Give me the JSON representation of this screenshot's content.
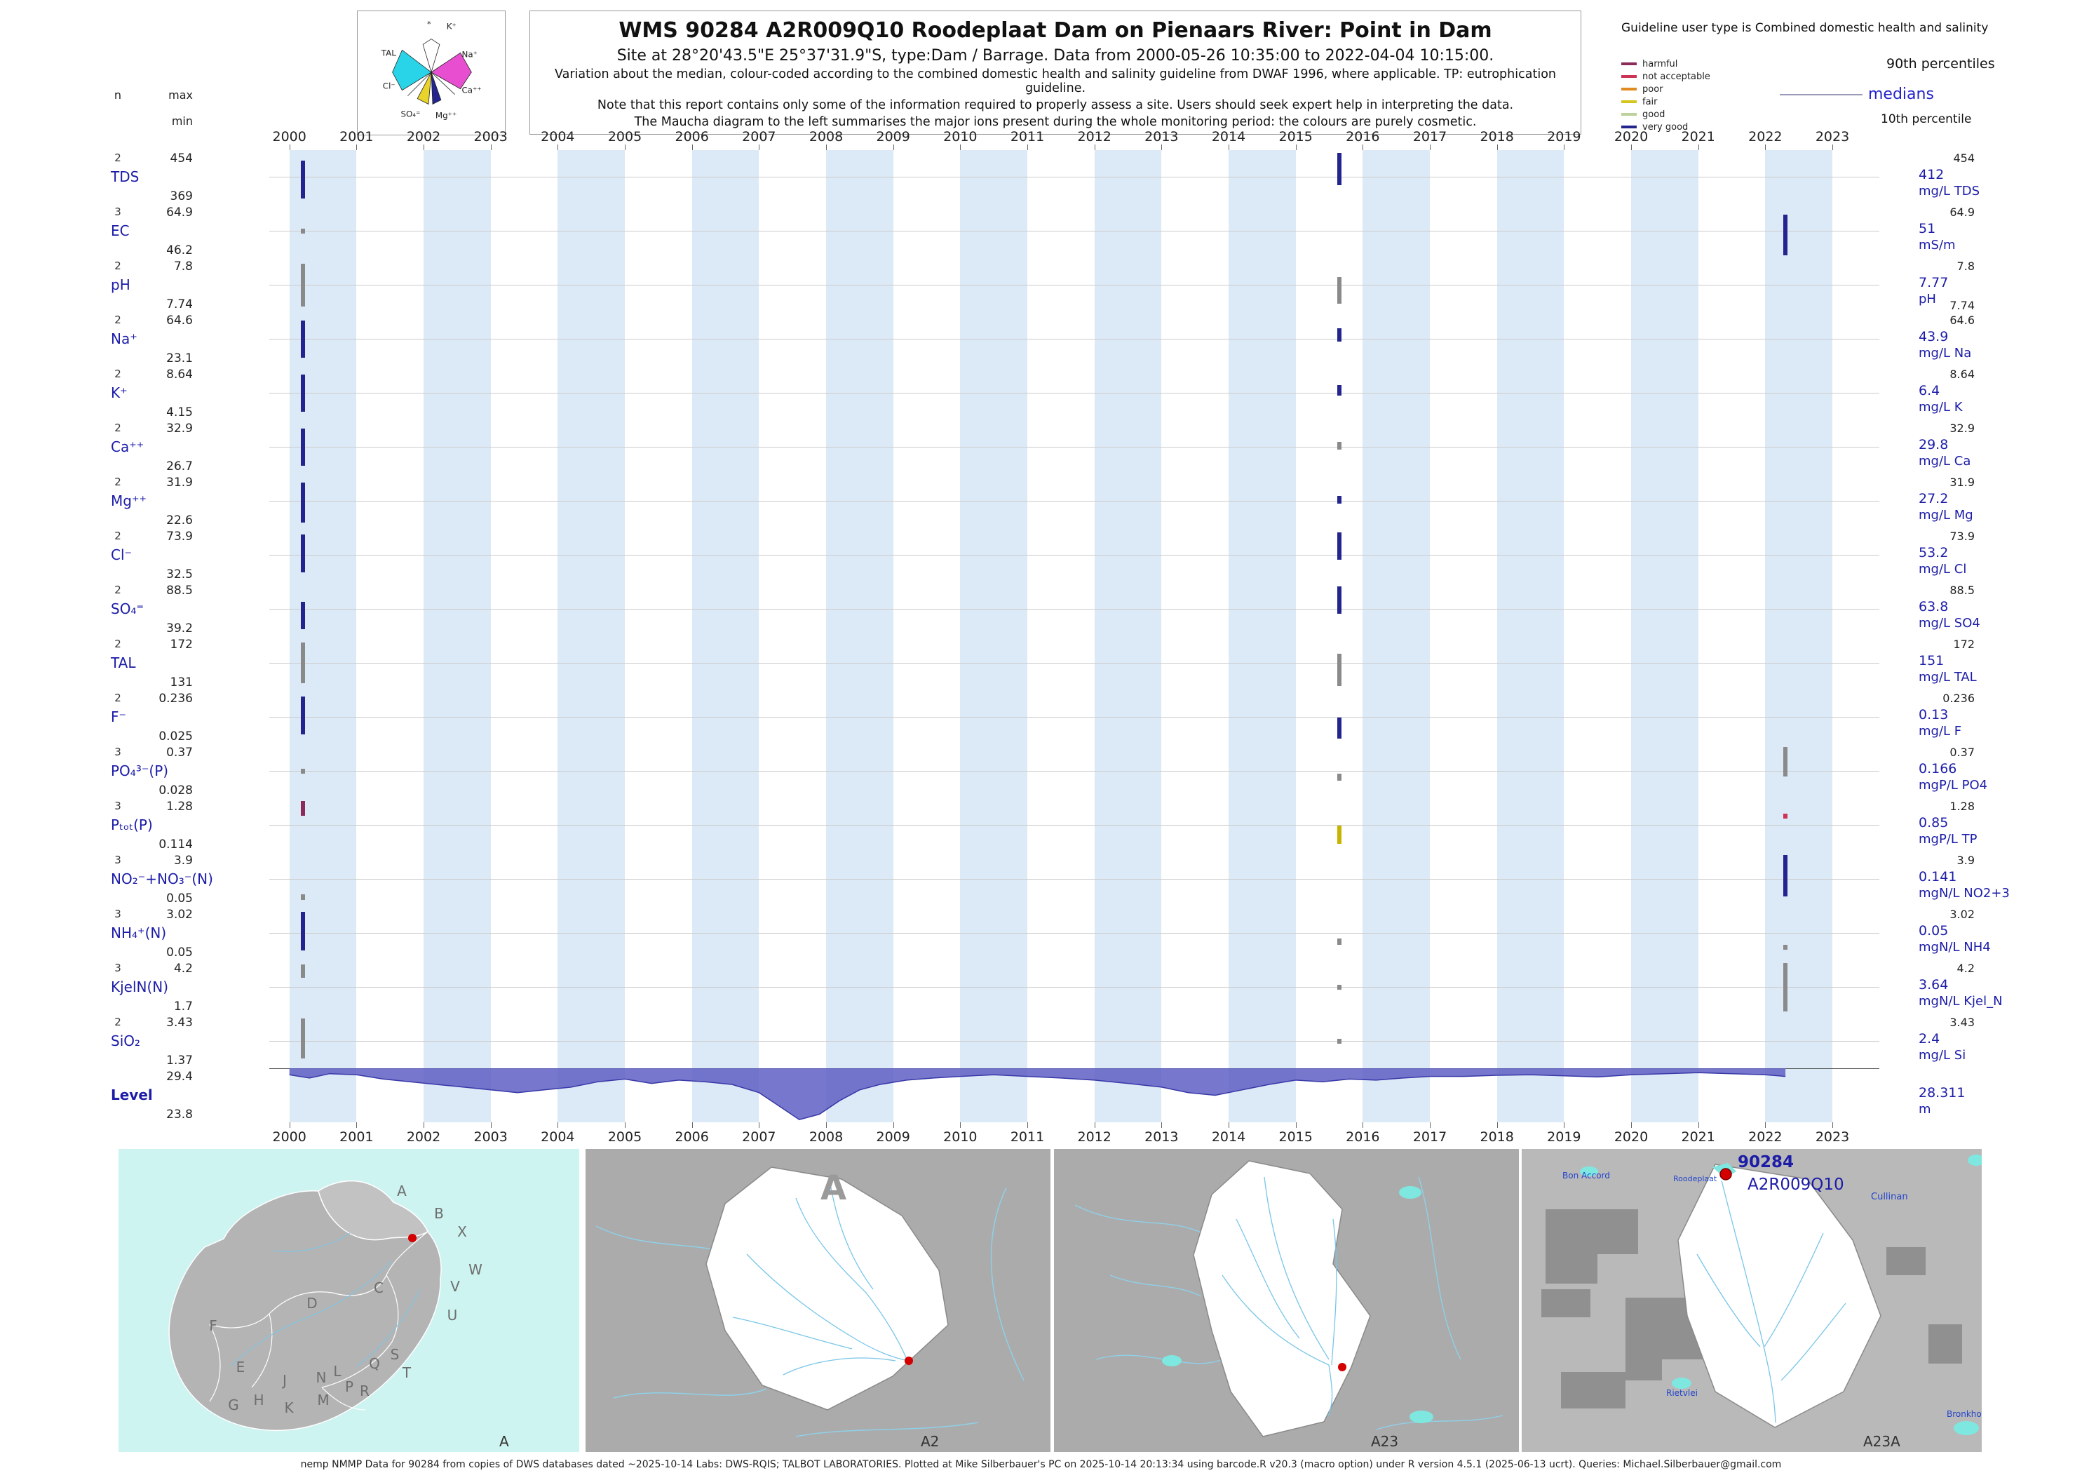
{
  "header": {
    "title": "WMS 90284 A2R009Q10 Roodeplaat Dam on Pienaars River: Point in Dam",
    "site_line": "Site at 28°20'43.5\"E 25°37'31.9\"S, type:Dam / Barrage.  Data from 2000-05-26 10:35:00 to 2022-04-04 10:15:00.",
    "variation_line": "Variation about the median,  colour-coded according to the combined domestic health and salinity guideline from DWAF 1996, where applicable. TP: eutrophication guideline.",
    "note_line": "Note that this report contains only some of the information required to properly assess a site. Users should seek expert help in interpreting the data.",
    "maucha_line": "The Maucha diagram to the left summarises the major ions present during the whole monitoring period: the colours are purely cosmetic."
  },
  "maucha": {
    "ions": [
      "*",
      "K⁺",
      "Na⁺",
      "Ca⁺⁺",
      "Mg⁺⁺",
      "SO₄⁼",
      "Cl⁻",
      "TAL"
    ]
  },
  "legend": {
    "user_type": "Guideline user type is Combined domestic health and salinity",
    "classes": [
      {
        "label": "harmful",
        "color": "#8c2a5a"
      },
      {
        "label": "not acceptable",
        "color": "#cc3355"
      },
      {
        "label": "poor",
        "color": "#e08a20"
      },
      {
        "label": "fair",
        "color": "#d6c51e"
      },
      {
        "label": "good",
        "color": "#bcd29a"
      },
      {
        "label": "very good",
        "color": "#24248f"
      }
    ],
    "p90": "90th percentiles",
    "median": "medians",
    "p10": "10th percentile"
  },
  "left_header": {
    "n": "n",
    "max": "max",
    "min": "min"
  },
  "chart_data": {
    "type": "bar",
    "subtype": "barcode-deviation-rows",
    "x_axis": {
      "range": [
        1999.7,
        2023.7
      ],
      "years": [
        2000,
        2001,
        2002,
        2003,
        2004,
        2005,
        2006,
        2007,
        2008,
        2009,
        2010,
        2011,
        2012,
        2013,
        2014,
        2015,
        2016,
        2017,
        2018,
        2019,
        2020,
        2021,
        2022,
        2023
      ]
    },
    "colors": {
      "verygood": "#24248f",
      "good": "#bcd29a",
      "fair": "#c8b400",
      "poor": "#e08a20",
      "notacceptable": "#cc3355",
      "harmful": "#8c2a5a",
      "gray": "#8a8a8a"
    },
    "rows": [
      {
        "id": "tds",
        "param": "TDS",
        "n": "2",
        "max": "454",
        "min": "369",
        "median": "412",
        "unit": "mg/L TDS",
        "right_max": "454",
        "marks": [
          {
            "x": 2000.2,
            "c": "verygood",
            "y0": 0.2,
            "y1": 0.9
          },
          {
            "x": 2015.65,
            "c": "verygood",
            "y0": 0.05,
            "y1": 0.65
          }
        ]
      },
      {
        "id": "ec",
        "param": "EC",
        "n": "3",
        "max": "64.9",
        "min": "46.2",
        "median": "51",
        "unit": "mS/m",
        "right_max": "64.9",
        "marks": [
          {
            "x": 2000.2,
            "c": "gray",
            "y0": 0.45,
            "y1": 0.55
          },
          {
            "x": 2022.3,
            "c": "verygood",
            "y0": 0.2,
            "y1": 0.95
          }
        ]
      },
      {
        "id": "ph",
        "param": "pH",
        "n": "2",
        "max": "7.8",
        "min": "7.74",
        "median": "7.77",
        "unit": "pH",
        "right_max": "7.8",
        "min_right": "7.74",
        "marks": [
          {
            "x": 2000.2,
            "c": "gray",
            "y0": 0.1,
            "y1": 0.9
          },
          {
            "x": 2015.65,
            "c": "gray",
            "y0": 0.35,
            "y1": 0.85
          }
        ]
      },
      {
        "id": "na",
        "param": "Na⁺",
        "n": "2",
        "max": "64.6",
        "min": "23.1",
        "median": "43.9",
        "unit": "mg/L Na",
        "right_max": "64.6",
        "marks": [
          {
            "x": 2000.2,
            "c": "verygood",
            "y0": 0.15,
            "y1": 0.85
          },
          {
            "x": 2015.65,
            "c": "verygood",
            "y0": 0.3,
            "y1": 0.55
          }
        ]
      },
      {
        "id": "k",
        "param": "K⁺",
        "n": "2",
        "max": "8.64",
        "min": "4.15",
        "median": "6.4",
        "unit": "mg/L K",
        "right_max": "8.64",
        "marks": [
          {
            "x": 2000.2,
            "c": "verygood",
            "y0": 0.15,
            "y1": 0.85
          },
          {
            "x": 2015.65,
            "c": "verygood",
            "y0": 0.35,
            "y1": 0.55
          }
        ]
      },
      {
        "id": "ca",
        "param": "Ca⁺⁺",
        "n": "2",
        "max": "32.9",
        "min": "26.7",
        "median": "29.8",
        "unit": "mg/L Ca",
        "right_max": "32.9",
        "marks": [
          {
            "x": 2000.2,
            "c": "verygood",
            "y0": 0.15,
            "y1": 0.85
          },
          {
            "x": 2015.65,
            "c": "gray",
            "y0": 0.4,
            "y1": 0.55
          }
        ]
      },
      {
        "id": "mg",
        "param": "Mg⁺⁺",
        "n": "2",
        "max": "31.9",
        "min": "22.6",
        "median": "27.2",
        "unit": "mg/L Mg",
        "right_max": "31.9",
        "marks": [
          {
            "x": 2000.2,
            "c": "verygood",
            "y0": 0.15,
            "y1": 0.9
          },
          {
            "x": 2015.65,
            "c": "verygood",
            "y0": 0.4,
            "y1": 0.55
          }
        ]
      },
      {
        "id": "cl",
        "param": "Cl⁻",
        "n": "2",
        "max": "73.9",
        "min": "32.5",
        "median": "53.2",
        "unit": "mg/L Cl",
        "right_max": "73.9",
        "marks": [
          {
            "x": 2000.2,
            "c": "verygood",
            "y0": 0.12,
            "y1": 0.82
          },
          {
            "x": 2015.65,
            "c": "verygood",
            "y0": 0.08,
            "y1": 0.58
          }
        ]
      },
      {
        "id": "so4",
        "param": "SO₄⁼",
        "n": "2",
        "max": "88.5",
        "min": "39.2",
        "median": "63.8",
        "unit": "mg/L SO4",
        "right_max": "88.5",
        "marks": [
          {
            "x": 2000.2,
            "c": "verygood",
            "y0": 0.37,
            "y1": 0.87
          },
          {
            "x": 2015.65,
            "c": "verygood",
            "y0": 0.08,
            "y1": 0.58
          }
        ]
      },
      {
        "id": "tal",
        "param": "TAL",
        "n": "2",
        "max": "172",
        "min": "131",
        "median": "151",
        "unit": "mg/L TAL",
        "right_max": "172",
        "marks": [
          {
            "x": 2000.2,
            "c": "gray",
            "y0": 0.12,
            "y1": 0.87
          },
          {
            "x": 2015.65,
            "c": "gray",
            "y0": 0.32,
            "y1": 0.92
          }
        ]
      },
      {
        "id": "f",
        "param": "F⁻",
        "n": "2",
        "max": "0.236",
        "min": "0.025",
        "median": "0.13",
        "unit": "mg/L F",
        "right_max": "0.236",
        "marks": [
          {
            "x": 2000.2,
            "c": "verygood",
            "y0": 0.12,
            "y1": 0.82
          },
          {
            "x": 2015.65,
            "c": "verygood",
            "y0": 0.5,
            "y1": 0.9
          }
        ]
      },
      {
        "id": "po4",
        "param": "PO₄³⁻(P)",
        "n": "3",
        "max": "0.37",
        "min": "0.028",
        "median": "0.166",
        "unit": "mgP/L PO4",
        "right_max": "0.37",
        "marks": [
          {
            "x": 2000.2,
            "c": "gray",
            "y0": 0.45,
            "y1": 0.55
          },
          {
            "x": 2015.65,
            "c": "gray",
            "y0": 0.55,
            "y1": 0.68
          },
          {
            "x": 2022.3,
            "c": "gray",
            "y0": 0.05,
            "y1": 0.6
          }
        ]
      },
      {
        "id": "ptot",
        "param": "Pₜₒₜ(P)",
        "n": "3",
        "max": "1.28",
        "min": "0.114",
        "median": "0.85",
        "unit": "mgP/L TP",
        "right_max": "1.28",
        "marks": [
          {
            "x": 2000.2,
            "c": "harmful",
            "y0": 0.05,
            "y1": 0.33
          },
          {
            "x": 2015.65,
            "c": "fair",
            "y0": 0.5,
            "y1": 0.85
          },
          {
            "x": 2022.3,
            "c": "notacceptable",
            "y0": 0.28,
            "y1": 0.38
          }
        ]
      },
      {
        "id": "no23",
        "param": "NO₂⁻+NO₃⁻(N)",
        "n": "3",
        "max": "3.9",
        "min": "0.05",
        "median": "0.141",
        "unit": "mgN/L NO2+3",
        "right_max": "3.9",
        "marks": [
          {
            "x": 2000.2,
            "c": "gray",
            "y0": 0.78,
            "y1": 0.88
          },
          {
            "x": 2022.3,
            "c": "verygood",
            "y0": 0.05,
            "y1": 0.82
          }
        ]
      },
      {
        "id": "nh4",
        "param": "NH₄⁺(N)",
        "n": "3",
        "max": "3.02",
        "min": "0.05",
        "median": "0.05",
        "unit": "mgN/L NH4",
        "right_max": "3.02",
        "marks": [
          {
            "x": 2000.2,
            "c": "verygood",
            "y0": 0.1,
            "y1": 0.82
          },
          {
            "x": 2015.65,
            "c": "gray",
            "y0": 0.6,
            "y1": 0.72
          },
          {
            "x": 2022.3,
            "c": "gray",
            "y0": 0.72,
            "y1": 0.8
          }
        ]
      },
      {
        "id": "kjeln",
        "param": "KjelN(N)",
        "n": "3",
        "max": "4.2",
        "min": "1.7",
        "median": "3.64",
        "unit": "mgN/L Kjel_N",
        "right_max": "4.2",
        "marks": [
          {
            "x": 2000.2,
            "c": "gray",
            "y0": 0.08,
            "y1": 0.33
          },
          {
            "x": 2015.65,
            "c": "gray",
            "y0": 0.45,
            "y1": 0.55
          },
          {
            "x": 2022.3,
            "c": "gray",
            "y0": 0.05,
            "y1": 0.95
          }
        ]
      },
      {
        "id": "sio2",
        "param": "SiO₂",
        "n": "2",
        "max": "3.43",
        "min": "1.37",
        "median": "2.4",
        "unit": "mg/L Si",
        "right_max": "3.43",
        "marks": [
          {
            "x": 2000.2,
            "c": "gray",
            "y0": 0.08,
            "y1": 0.82
          },
          {
            "x": 2015.65,
            "c": "gray",
            "y0": 0.45,
            "y1": 0.55
          }
        ]
      },
      {
        "id": "level",
        "param": "Level",
        "n": "",
        "max": "29.4",
        "min": "23.8",
        "median": "28.311",
        "unit": "m",
        "series": {
          "x": [
            2000.0,
            2000.3,
            2000.6,
            2001.0,
            2001.4,
            2001.8,
            2002.2,
            2002.6,
            2003.0,
            2003.4,
            2003.8,
            2004.2,
            2004.6,
            2005.0,
            2005.4,
            2005.8,
            2006.2,
            2006.6,
            2007.0,
            2007.3,
            2007.6,
            2007.9,
            2008.2,
            2008.5,
            2008.8,
            2009.2,
            2009.6,
            2010.0,
            2010.5,
            2011.0,
            2011.5,
            2012.0,
            2012.5,
            2013.0,
            2013.4,
            2013.8,
            2014.2,
            2014.6,
            2015.0,
            2015.4,
            2015.8,
            2016.2,
            2016.6,
            2017.0,
            2017.5,
            2018.0,
            2018.5,
            2019.0,
            2019.5,
            2020.0,
            2020.5,
            2021.0,
            2021.5,
            2022.0,
            2022.3
          ],
          "level": [
            28.73,
            28.39,
            28.84,
            28.73,
            28.28,
            28.0,
            27.72,
            27.44,
            27.16,
            26.88,
            27.16,
            27.44,
            28.0,
            28.28,
            27.83,
            28.17,
            28.0,
            27.72,
            26.88,
            25.48,
            24.08,
            24.64,
            26.04,
            27.16,
            27.72,
            28.17,
            28.39,
            28.56,
            28.73,
            28.56,
            28.39,
            28.17,
            27.83,
            27.44,
            26.88,
            26.6,
            27.16,
            27.72,
            28.17,
            28.0,
            28.28,
            28.17,
            28.39,
            28.56,
            28.56,
            28.67,
            28.73,
            28.62,
            28.5,
            28.73,
            28.84,
            28.95,
            28.84,
            28.73,
            28.56
          ]
        }
      }
    ]
  },
  "maps": {
    "panel_a": {
      "label": "A",
      "regions": [
        "A",
        "B",
        "X",
        "W",
        "C",
        "V",
        "U",
        "D",
        "F",
        "E",
        "Q",
        "S",
        "T",
        "L",
        "N",
        "J",
        "G",
        "H",
        "K",
        "M",
        "P",
        "R"
      ]
    },
    "panel_a2": {
      "label": "A2",
      "watermark": "A"
    },
    "panel_a23": {
      "label": "A23"
    },
    "panel_a23a": {
      "label": "A23A",
      "site_id": "90284",
      "site_code": "A2R009Q10",
      "places": {
        "bon_accord": "Bon Accord",
        "roodeplaat": "Roodeplaat",
        "cullinan": "Cullinan",
        "rietvlei": "Rietvlei",
        "bronkho": "Bronkho"
      }
    }
  },
  "footer": {
    "text": "nemp NMMP Data for 90284 from copies of DWS databases dated ~2025-10-14 Labs: DWS-RQIS; TALBOT LABORATORIES. Plotted at Mike Silberbauer's PC on 2025-10-14 20:13:34 using barcode.R v20.3 (macro option) under R version 4.5.1 (2025-06-13 ucrt). Queries: Michael.Silberbauer@gmail.com"
  }
}
